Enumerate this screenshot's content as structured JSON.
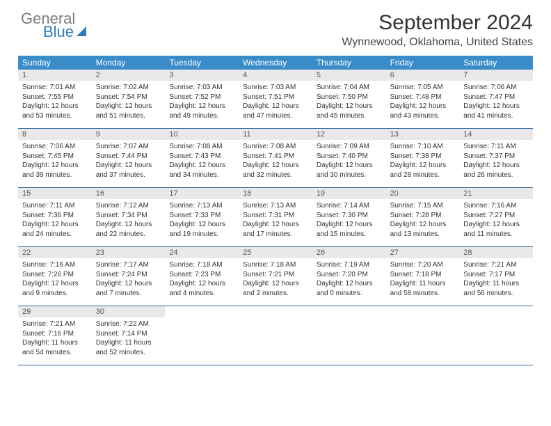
{
  "logo": {
    "general": "General",
    "blue": "Blue"
  },
  "title": "September 2024",
  "location": "Wynnewood, Oklahoma, United States",
  "colors": {
    "header_bg": "#3a8cc9",
    "daynum_bg": "#e9e9e9",
    "week_border": "#2f6a9e",
    "logo_gray": "#7a7a7a",
    "logo_blue": "#2f7cc0"
  },
  "weekdays": [
    "Sunday",
    "Monday",
    "Tuesday",
    "Wednesday",
    "Thursday",
    "Friday",
    "Saturday"
  ],
  "weeks": [
    [
      {
        "n": "1",
        "sr": "7:01 AM",
        "ss": "7:55 PM",
        "dl": "12 hours and 53 minutes."
      },
      {
        "n": "2",
        "sr": "7:02 AM",
        "ss": "7:54 PM",
        "dl": "12 hours and 51 minutes."
      },
      {
        "n": "3",
        "sr": "7:03 AM",
        "ss": "7:52 PM",
        "dl": "12 hours and 49 minutes."
      },
      {
        "n": "4",
        "sr": "7:03 AM",
        "ss": "7:51 PM",
        "dl": "12 hours and 47 minutes."
      },
      {
        "n": "5",
        "sr": "7:04 AM",
        "ss": "7:50 PM",
        "dl": "12 hours and 45 minutes."
      },
      {
        "n": "6",
        "sr": "7:05 AM",
        "ss": "7:48 PM",
        "dl": "12 hours and 43 minutes."
      },
      {
        "n": "7",
        "sr": "7:06 AM",
        "ss": "7:47 PM",
        "dl": "12 hours and 41 minutes."
      }
    ],
    [
      {
        "n": "8",
        "sr": "7:06 AM",
        "ss": "7:45 PM",
        "dl": "12 hours and 39 minutes."
      },
      {
        "n": "9",
        "sr": "7:07 AM",
        "ss": "7:44 PM",
        "dl": "12 hours and 37 minutes."
      },
      {
        "n": "10",
        "sr": "7:08 AM",
        "ss": "7:43 PM",
        "dl": "12 hours and 34 minutes."
      },
      {
        "n": "11",
        "sr": "7:08 AM",
        "ss": "7:41 PM",
        "dl": "12 hours and 32 minutes."
      },
      {
        "n": "12",
        "sr": "7:09 AM",
        "ss": "7:40 PM",
        "dl": "12 hours and 30 minutes."
      },
      {
        "n": "13",
        "sr": "7:10 AM",
        "ss": "7:38 PM",
        "dl": "12 hours and 28 minutes."
      },
      {
        "n": "14",
        "sr": "7:11 AM",
        "ss": "7:37 PM",
        "dl": "12 hours and 26 minutes."
      }
    ],
    [
      {
        "n": "15",
        "sr": "7:11 AM",
        "ss": "7:36 PM",
        "dl": "12 hours and 24 minutes."
      },
      {
        "n": "16",
        "sr": "7:12 AM",
        "ss": "7:34 PM",
        "dl": "12 hours and 22 minutes."
      },
      {
        "n": "17",
        "sr": "7:13 AM",
        "ss": "7:33 PM",
        "dl": "12 hours and 19 minutes."
      },
      {
        "n": "18",
        "sr": "7:13 AM",
        "ss": "7:31 PM",
        "dl": "12 hours and 17 minutes."
      },
      {
        "n": "19",
        "sr": "7:14 AM",
        "ss": "7:30 PM",
        "dl": "12 hours and 15 minutes."
      },
      {
        "n": "20",
        "sr": "7:15 AM",
        "ss": "7:28 PM",
        "dl": "12 hours and 13 minutes."
      },
      {
        "n": "21",
        "sr": "7:16 AM",
        "ss": "7:27 PM",
        "dl": "12 hours and 11 minutes."
      }
    ],
    [
      {
        "n": "22",
        "sr": "7:16 AM",
        "ss": "7:26 PM",
        "dl": "12 hours and 9 minutes."
      },
      {
        "n": "23",
        "sr": "7:17 AM",
        "ss": "7:24 PM",
        "dl": "12 hours and 7 minutes."
      },
      {
        "n": "24",
        "sr": "7:18 AM",
        "ss": "7:23 PM",
        "dl": "12 hours and 4 minutes."
      },
      {
        "n": "25",
        "sr": "7:18 AM",
        "ss": "7:21 PM",
        "dl": "12 hours and 2 minutes."
      },
      {
        "n": "26",
        "sr": "7:19 AM",
        "ss": "7:20 PM",
        "dl": "12 hours and 0 minutes."
      },
      {
        "n": "27",
        "sr": "7:20 AM",
        "ss": "7:18 PM",
        "dl": "11 hours and 58 minutes."
      },
      {
        "n": "28",
        "sr": "7:21 AM",
        "ss": "7:17 PM",
        "dl": "11 hours and 56 minutes."
      }
    ],
    [
      {
        "n": "29",
        "sr": "7:21 AM",
        "ss": "7:16 PM",
        "dl": "11 hours and 54 minutes."
      },
      {
        "n": "30",
        "sr": "7:22 AM",
        "ss": "7:14 PM",
        "dl": "11 hours and 52 minutes."
      },
      null,
      null,
      null,
      null,
      null
    ]
  ],
  "labels": {
    "sunrise": "Sunrise: ",
    "sunset": "Sunset: ",
    "daylight": "Daylight: "
  }
}
